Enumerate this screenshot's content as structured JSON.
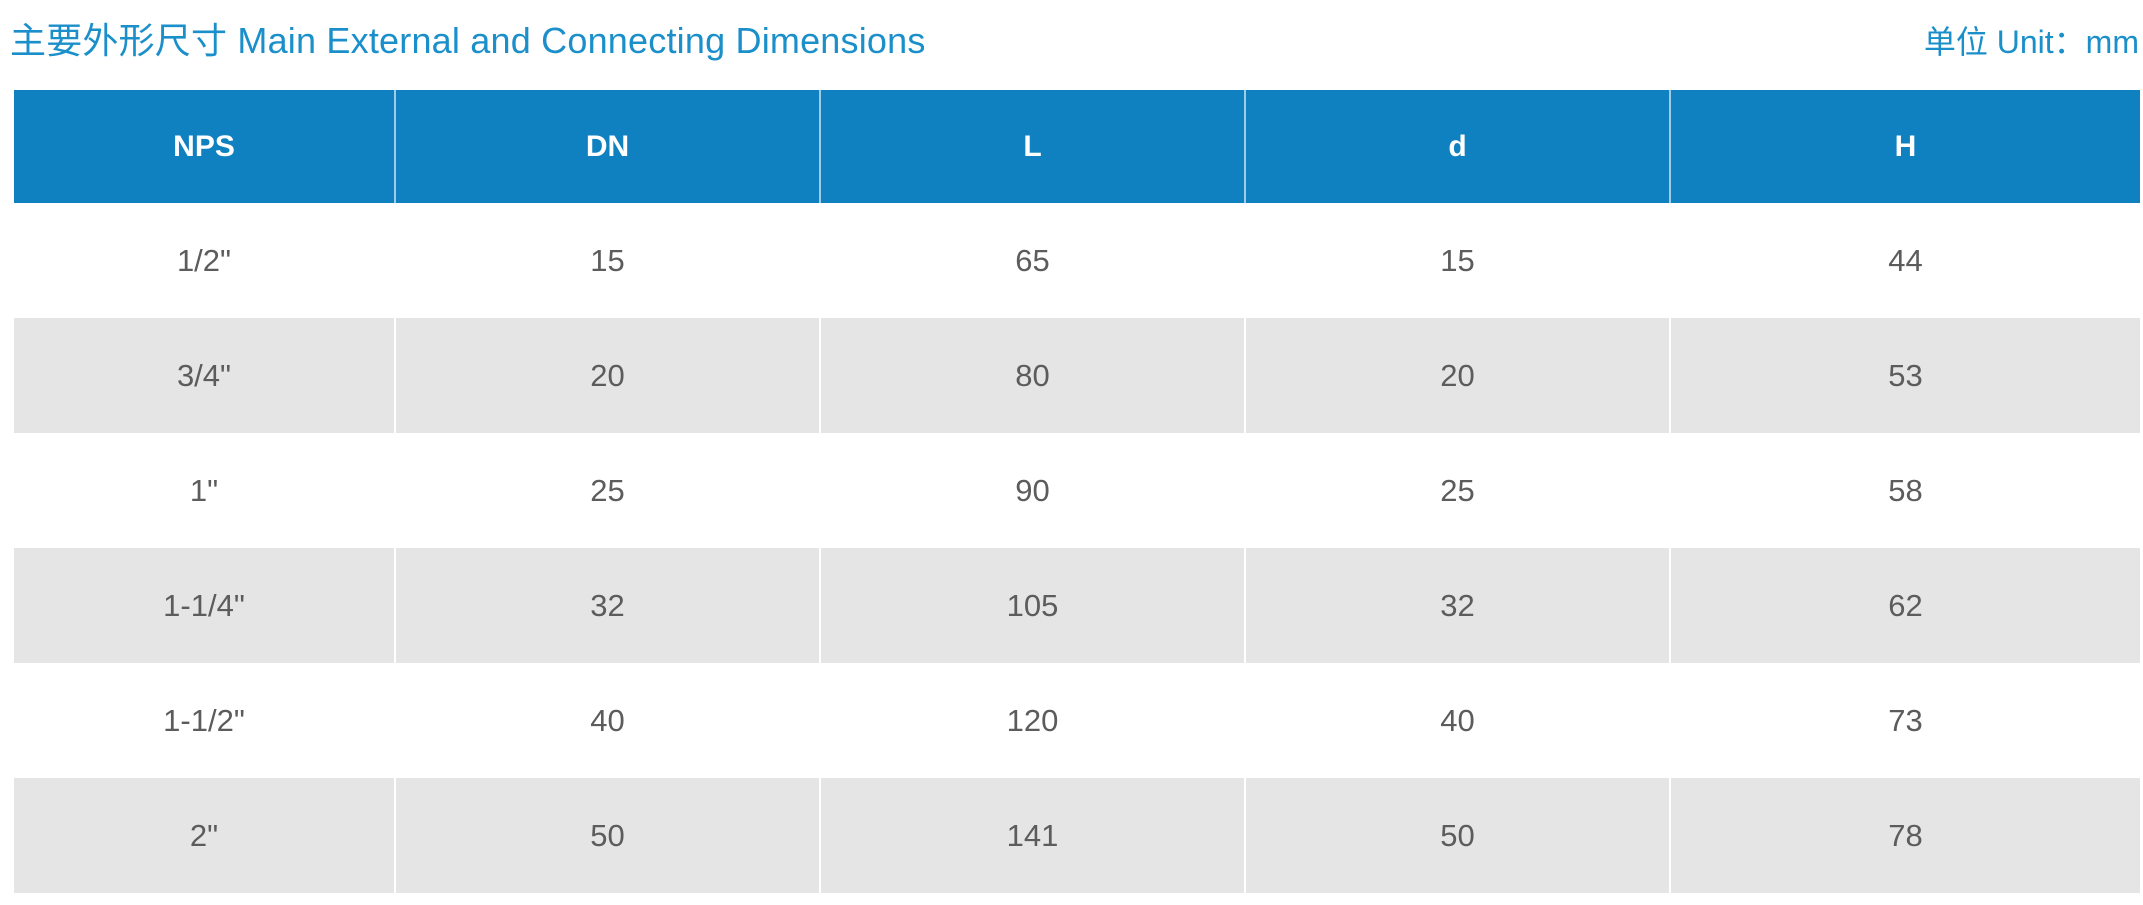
{
  "title": "主要外形尺寸 Main External and Connecting Dimensions",
  "unit": "单位 Unit：mm",
  "table": {
    "headers": [
      "NPS",
      "DN",
      "L",
      "d",
      "H"
    ],
    "rows": [
      [
        "1/2\"",
        "15",
        "65",
        "15",
        "44"
      ],
      [
        "3/4\"",
        "20",
        "80",
        "20",
        "53"
      ],
      [
        "1\"",
        "25",
        "90",
        "25",
        "58"
      ],
      [
        "1-1/4\"",
        "32",
        "105",
        "32",
        "62"
      ],
      [
        "1-1/2\"",
        "40",
        "120",
        "40",
        "73"
      ],
      [
        "2\"",
        "50",
        "141",
        "50",
        "78"
      ]
    ]
  },
  "colors": {
    "header_background": "#0f80c0",
    "title_text": "#1b8fca",
    "row_shaded": "#e5e5e5",
    "row_light": "#ffffff"
  }
}
